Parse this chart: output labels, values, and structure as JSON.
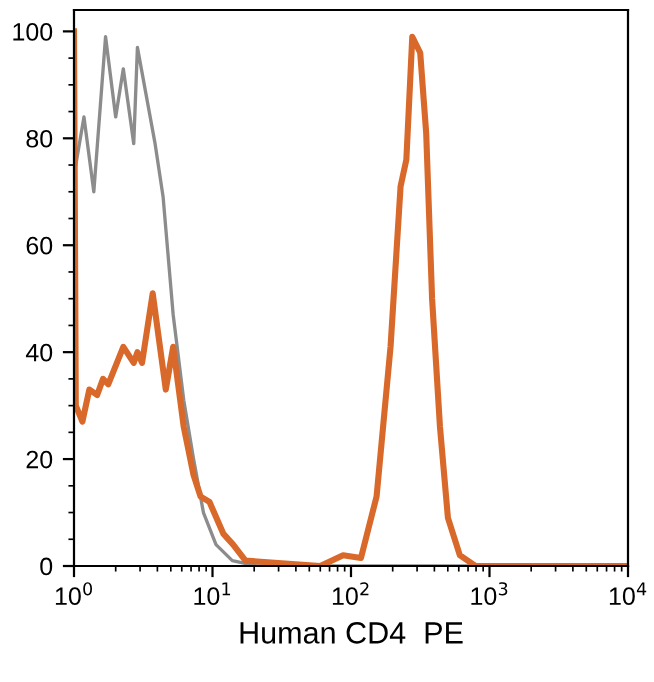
{
  "chart_data": {
    "type": "line",
    "xlabel": "Human CD4  PE",
    "log": "x",
    "xlim": [
      1,
      10000
    ],
    "ylim": [
      0,
      104
    ],
    "xticks": [
      {
        "value": 1,
        "label": "10$^{0}$"
      },
      {
        "value": 10,
        "label": "10$^{1}$"
      },
      {
        "value": 100,
        "label": "10$^{2}$"
      },
      {
        "value": 1000,
        "label": "10$^{3}$"
      },
      {
        "value": 10000,
        "label": "10$^{4}$"
      }
    ],
    "yticks": [
      0,
      20,
      40,
      60,
      80,
      100
    ],
    "grid": false,
    "legend": false,
    "marker": "none",
    "line_style": "solid",
    "series": [
      {
        "color": "#8c8c8c",
        "x": [
          1.03,
          1.18,
          1.39,
          1.69,
          2.0,
          2.27,
          2.7,
          2.87,
          3.85,
          4.4,
          5.2,
          6.2,
          7.3,
          8.6,
          10.6,
          13.9,
          21,
          10000
        ],
        "values": [
          75,
          84,
          70,
          99,
          84,
          93,
          79,
          97,
          79,
          69,
          47,
          31,
          20,
          10,
          4,
          1,
          0,
          0
        ]
      },
      {
        "color": "#d9692a",
        "x": [
          1.0,
          1.03,
          1.15,
          1.29,
          1.47,
          1.62,
          1.77,
          2.27,
          2.7,
          2.87,
          3.1,
          3.7,
          4.6,
          5.2,
          6.2,
          7.3,
          8.2,
          9.5,
          12.0,
          14.1,
          17.3,
          60,
          87.7,
          118,
          153,
          193,
          228,
          251,
          277,
          316,
          349,
          385,
          439,
          501,
          611,
          794,
          10000
        ],
        "values": [
          100,
          30,
          27,
          33,
          32,
          35,
          34,
          41,
          38,
          40,
          38,
          51,
          33,
          41,
          26,
          17,
          13,
          12,
          6,
          4,
          1,
          0,
          2,
          1.5,
          13,
          41,
          71,
          76,
          99,
          96,
          81,
          50,
          26,
          9,
          2,
          0,
          0
        ]
      }
    ]
  }
}
